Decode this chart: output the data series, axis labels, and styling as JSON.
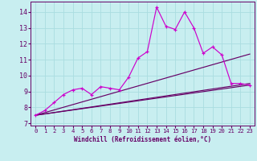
{
  "background_color": "#c8eef0",
  "grid_color": "#aadde0",
  "line_color_main": "#cc00cc",
  "line_color_dark": "#660066",
  "xlabel": "Windchill (Refroidissement éolien,°C)",
  "xlim": [
    -0.5,
    23.5
  ],
  "ylim": [
    6.85,
    14.65
  ],
  "yticks": [
    7,
    8,
    9,
    10,
    11,
    12,
    13,
    14
  ],
  "xticks": [
    0,
    1,
    2,
    3,
    4,
    5,
    6,
    7,
    8,
    9,
    10,
    11,
    12,
    13,
    14,
    15,
    16,
    17,
    18,
    19,
    20,
    21,
    22,
    23
  ],
  "series1_x": [
    0,
    1,
    2,
    3,
    4,
    5,
    6,
    7,
    8,
    9,
    10,
    11,
    12,
    13,
    14,
    15,
    16,
    17,
    18,
    19,
    20,
    21,
    22,
    23
  ],
  "series1_y": [
    7.5,
    7.8,
    8.3,
    8.8,
    9.1,
    9.2,
    8.8,
    9.3,
    9.2,
    9.1,
    9.9,
    11.1,
    11.5,
    14.3,
    13.1,
    12.9,
    14.0,
    13.0,
    11.4,
    11.8,
    11.3,
    9.5,
    9.5,
    9.4
  ],
  "series2_x": [
    0,
    23
  ],
  "series2_y": [
    7.5,
    9.4
  ],
  "series3_x": [
    0,
    23
  ],
  "series3_y": [
    7.5,
    11.35
  ],
  "series4_x": [
    0,
    23
  ],
  "series4_y": [
    7.5,
    9.5
  ]
}
